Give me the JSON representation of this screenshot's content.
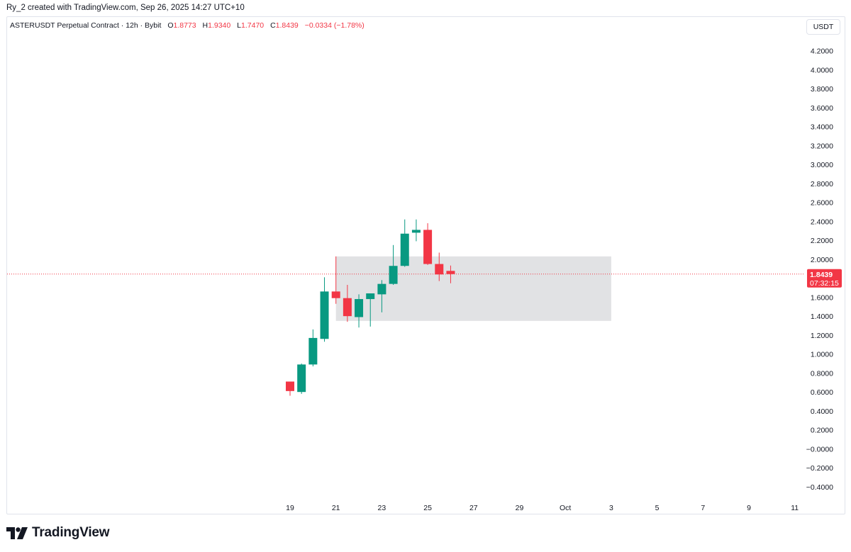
{
  "header": {
    "credit": "Ry_2 created with TradingView.com, Sep 26, 2025 14:27 UTC+10"
  },
  "legend": {
    "symbol": "ASTERUSDT Perpetual Contract · 12h · Bybit",
    "o_label": "O",
    "o_value": "1.8773",
    "h_label": "H",
    "h_value": "1.9340",
    "l_label": "L",
    "l_value": "1.7470",
    "c_label": "C",
    "c_value": "1.8439",
    "change": "−0.0334 (−1.78%)"
  },
  "currency_button": "USDT",
  "price_tag": {
    "price": "1.8439",
    "countdown": "07:32:15"
  },
  "brand": {
    "name": "TradingView"
  },
  "colors": {
    "up": "#089981",
    "down": "#f23645",
    "zone": "#e1e2e4",
    "grid_text": "#131722"
  },
  "chart_data": {
    "type": "candlestick",
    "timeframe": "12h",
    "y_ticks": [
      "4.2000",
      "4.0000",
      "3.8000",
      "3.6000",
      "3.4000",
      "3.2000",
      "3.0000",
      "2.8000",
      "2.6000",
      "2.4000",
      "2.2000",
      "2.0000",
      "1.8000",
      "1.6000",
      "1.4000",
      "1.2000",
      "1.0000",
      "0.8000",
      "0.6000",
      "0.4000",
      "0.2000",
      "−0.0000",
      "−0.2000",
      "−0.4000"
    ],
    "y_values": [
      4.2,
      4.0,
      3.8,
      3.6,
      3.4,
      3.2,
      3.0,
      2.8,
      2.6,
      2.4,
      2.2,
      2.0,
      1.8,
      1.6,
      1.4,
      1.2,
      1.0,
      0.8,
      0.6,
      0.4,
      0.2,
      0.0,
      -0.2,
      -0.4
    ],
    "x_ticks": [
      "19",
      "21",
      "23",
      "25",
      "27",
      "29",
      "Oct",
      "3",
      "5",
      "7",
      "9",
      "11"
    ],
    "x_tick_days": [
      19,
      21,
      23,
      25,
      27,
      29,
      31,
      33,
      35,
      37,
      39,
      41
    ],
    "ylim": [
      -0.5,
      4.35
    ],
    "last_price": 1.8439,
    "candles": [
      {
        "t": 19.0,
        "o": 0.71,
        "h": 0.71,
        "l": 0.56,
        "c": 0.61
      },
      {
        "t": 19.5,
        "o": 0.6,
        "h": 0.9,
        "l": 0.58,
        "c": 0.89
      },
      {
        "t": 20.0,
        "o": 0.89,
        "h": 1.26,
        "l": 0.87,
        "c": 1.17
      },
      {
        "t": 20.5,
        "o": 1.16,
        "h": 1.81,
        "l": 1.13,
        "c": 1.66
      },
      {
        "t": 21.0,
        "o": 1.66,
        "h": 2.03,
        "l": 1.53,
        "c": 1.59
      },
      {
        "t": 21.5,
        "o": 1.59,
        "h": 1.73,
        "l": 1.34,
        "c": 1.4
      },
      {
        "t": 22.0,
        "o": 1.39,
        "h": 1.63,
        "l": 1.28,
        "c": 1.58
      },
      {
        "t": 22.5,
        "o": 1.58,
        "h": 1.64,
        "l": 1.29,
        "c": 1.64
      },
      {
        "t": 23.0,
        "o": 1.63,
        "h": 1.78,
        "l": 1.44,
        "c": 1.74
      },
      {
        "t": 23.5,
        "o": 1.74,
        "h": 2.15,
        "l": 1.73,
        "c": 1.93
      },
      {
        "t": 24.0,
        "o": 1.93,
        "h": 2.42,
        "l": 1.92,
        "c": 2.27
      },
      {
        "t": 24.5,
        "o": 2.28,
        "h": 2.42,
        "l": 2.19,
        "c": 2.31
      },
      {
        "t": 25.0,
        "o": 2.31,
        "h": 2.38,
        "l": 1.94,
        "c": 1.95
      },
      {
        "t": 25.5,
        "o": 1.95,
        "h": 2.07,
        "l": 1.77,
        "c": 1.84
      },
      {
        "t": 26.0,
        "o": 1.8773,
        "h": 1.934,
        "l": 1.747,
        "c": 1.8439
      }
    ],
    "zone": {
      "t_start": 21.0,
      "t_end": 33.0,
      "top": 2.03,
      "bottom": 1.35
    }
  }
}
